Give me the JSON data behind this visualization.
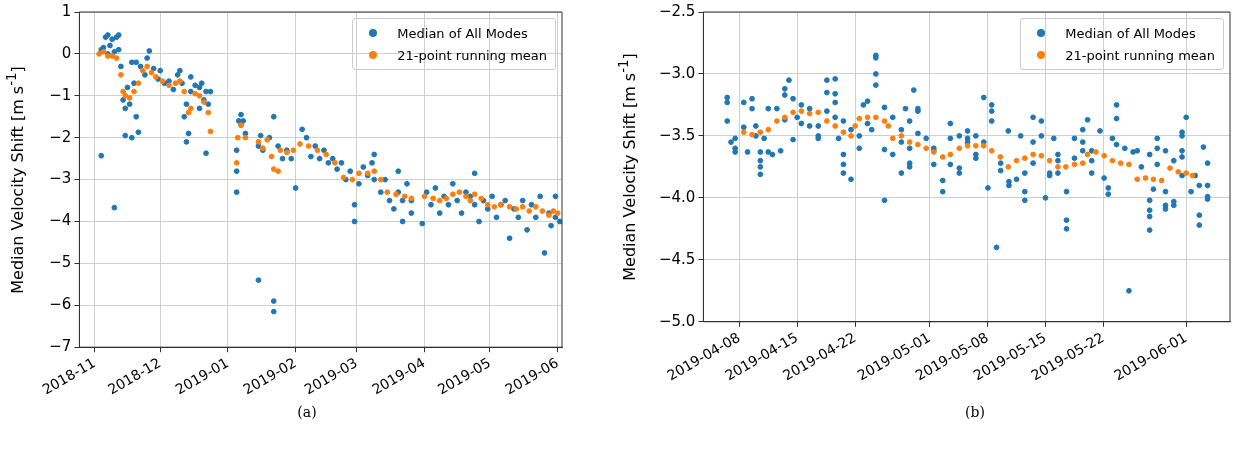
{
  "chart_data": [
    {
      "type": "scatter",
      "ylabel": "Median Velocity Shift [m s$^{-1}$]",
      "legend": "top right",
      "marker": "circle",
      "grid": true,
      "xlim": [
        "2018-10-25",
        "2019-06-03"
      ],
      "ylim": [
        -7,
        1
      ],
      "xticks": [
        "2018-11",
        "2018-12",
        "2019-01",
        "2019-02",
        "2019-03",
        "2019-04",
        "2019-05",
        "2019-06"
      ],
      "yticks": [
        {
          "value": -7,
          "label": "−7"
        },
        {
          "value": -6,
          "label": "−6"
        },
        {
          "value": -5,
          "label": "−5"
        },
        {
          "value": -4,
          "label": "−4"
        },
        {
          "value": -3,
          "label": "−3"
        },
        {
          "value": -2,
          "label": "−2"
        },
        {
          "value": -1,
          "label": "−1"
        },
        {
          "value": 0,
          "label": "0"
        },
        {
          "value": 1,
          "label": "1"
        }
      ],
      "annotations": [
        "(a)"
      ],
      "series": [
        {
          "name": "Median of All Modes",
          "color": "#1f77b4",
          "x": [
            "2018-11-04",
            "2018-11-04",
            "2018-11-05",
            "2018-11-06",
            "2018-11-07",
            "2018-11-07",
            "2018-11-08",
            "2018-11-09",
            "2018-11-10",
            "2018-11-10",
            "2018-11-11",
            "2018-11-12",
            "2018-11-12",
            "2018-11-13",
            "2018-11-14",
            "2018-11-15",
            "2018-11-15",
            "2018-11-16",
            "2018-11-17",
            "2018-11-18",
            "2018-11-18",
            "2018-11-19",
            "2018-11-20",
            "2018-11-20",
            "2018-11-21",
            "2018-11-22",
            "2018-11-24",
            "2018-11-25",
            "2018-11-26",
            "2018-11-28",
            "2018-11-30",
            "2018-12-01",
            "2018-12-03",
            "2018-12-05",
            "2018-12-07",
            "2018-12-09",
            "2018-12-10",
            "2018-12-11",
            "2018-12-12",
            "2018-12-13",
            "2018-12-13",
            "2018-12-14",
            "2018-12-15",
            "2018-12-15",
            "2018-12-17",
            "2018-12-19",
            "2018-12-19",
            "2018-12-20",
            "2018-12-21",
            "2018-12-22",
            "2018-12-22",
            "2018-12-23",
            "2018-12-24",
            "2019-01-05",
            "2019-01-05",
            "2019-01-05",
            "2019-01-06",
            "2019-01-07",
            "2019-01-07",
            "2019-01-08",
            "2019-01-09",
            "2019-01-15",
            "2019-01-15",
            "2019-01-16",
            "2019-01-17",
            "2019-01-20",
            "2019-01-22",
            "2019-01-22",
            "2019-01-22",
            "2019-01-24",
            "2019-01-26",
            "2019-01-28",
            "2019-01-30",
            "2019-02-01",
            "2019-02-04",
            "2019-02-06",
            "2019-02-08",
            "2019-02-10",
            "2019-02-12",
            "2019-02-14",
            "2019-02-16",
            "2019-02-18",
            "2019-02-20",
            "2019-02-22",
            "2019-02-24",
            "2019-02-26",
            "2019-02-28",
            "2019-02-28",
            "2019-03-02",
            "2019-03-04",
            "2019-03-06",
            "2019-03-08",
            "2019-03-09",
            "2019-03-09",
            "2019-03-12",
            "2019-03-14",
            "2019-03-16",
            "2019-03-18",
            "2019-03-20",
            "2019-03-20",
            "2019-03-22",
            "2019-03-22",
            "2019-03-24",
            "2019-03-26",
            "2019-03-26",
            "2019-03-31",
            "2019-04-02",
            "2019-04-04",
            "2019-04-06",
            "2019-04-08",
            "2019-04-10",
            "2019-04-12",
            "2019-04-14",
            "2019-04-16",
            "2019-04-18",
            "2019-04-20",
            "2019-04-22",
            "2019-04-24",
            "2019-04-24",
            "2019-04-26",
            "2019-04-28",
            "2019-04-30",
            "2019-05-02",
            "2019-05-04",
            "2019-05-06",
            "2019-05-08",
            "2019-05-10",
            "2019-05-12",
            "2019-05-14",
            "2019-05-16",
            "2019-05-18",
            "2019-05-20",
            "2019-05-22",
            "2019-05-24",
            "2019-05-26",
            "2019-05-28",
            "2019-05-29",
            "2019-05-31",
            "2019-05-31",
            "2019-06-02"
          ],
          "values": [
            0.1,
            -2.43,
            0.15,
            0.4,
            0.45,
            0.0,
            0.2,
            0.35,
            -3.67,
            0.05,
            0.4,
            0.45,
            0.1,
            -0.3,
            -1.1,
            -1.3,
            -1.95,
            -0.8,
            -1.2,
            -2.0,
            -0.2,
            -0.7,
            -1.5,
            -0.2,
            -1.87,
            -0.3,
            -0.5,
            -0.1,
            0.07,
            -0.35,
            -0.6,
            -0.4,
            -0.7,
            -0.65,
            -0.85,
            -0.5,
            -0.4,
            -0.7,
            -1.5,
            -2.1,
            -1.2,
            -1.9,
            -0.55,
            -0.9,
            -0.75,
            -0.8,
            -1.3,
            -0.7,
            -1.1,
            -2.37,
            -0.9,
            -1.2,
            -0.9,
            -3.3,
            -2.8,
            -2.3,
            -1.6,
            -1.45,
            -1.7,
            -1.6,
            -1.9,
            -2.2,
            -5.4,
            -1.95,
            -2.3,
            -2.0,
            -6.15,
            -5.9,
            -1.5,
            -2.2,
            -2.5,
            -2.3,
            -2.5,
            -3.2,
            -1.8,
            -2.0,
            -2.45,
            -2.2,
            -2.5,
            -2.3,
            -2.6,
            -2.5,
            -2.75,
            -2.6,
            -3.0,
            -2.8,
            -4.0,
            -3.6,
            -3.1,
            -2.7,
            -2.9,
            -2.6,
            -2.4,
            -3.0,
            -3.3,
            -3.0,
            -3.5,
            -3.7,
            -2.8,
            -3.3,
            -4.0,
            -3.5,
            -3.1,
            -3.8,
            -3.5,
            -4.05,
            -3.3,
            -3.6,
            -3.2,
            -3.8,
            -3.4,
            -3.6,
            -3.1,
            -3.5,
            -3.8,
            -3.3,
            -3.4,
            -2.85,
            -3.6,
            -4.0,
            -3.5,
            -3.7,
            -3.4,
            -3.9,
            -3.6,
            -3.5,
            -4.4,
            -3.7,
            -3.9,
            -3.5,
            -4.2,
            -3.6,
            -3.9,
            -3.4,
            -4.75,
            -3.8,
            -4.1,
            -3.4,
            -3.9,
            -4.0
          ]
        },
        {
          "name": "21-point running mean",
          "color": "#ff7f0e",
          "x": [
            "2018-11-03",
            "2018-11-05",
            "2018-11-07",
            "2018-11-09",
            "2018-11-11",
            "2018-11-13",
            "2018-11-14",
            "2018-11-15",
            "2018-11-17",
            "2018-11-19",
            "2018-11-21",
            "2018-11-23",
            "2018-11-25",
            "2018-11-27",
            "2018-11-29",
            "2018-12-02",
            "2018-12-05",
            "2018-12-08",
            "2018-12-10",
            "2018-12-12",
            "2018-12-14",
            "2018-12-15",
            "2018-12-17",
            "2018-12-19",
            "2018-12-21",
            "2018-12-23",
            "2018-12-24",
            "2019-01-05",
            "2019-01-05T12:00",
            "2019-01-07",
            "2019-01-09",
            "2019-01-15",
            "2019-01-17",
            "2019-01-19",
            "2019-01-21",
            "2019-01-22",
            "2019-01-24",
            "2019-01-25",
            "2019-01-28",
            "2019-01-31",
            "2019-02-03",
            "2019-02-07",
            "2019-02-11",
            "2019-02-15",
            "2019-02-19",
            "2019-02-23",
            "2019-02-27",
            "2019-03-02",
            "2019-03-06",
            "2019-03-09",
            "2019-03-12",
            "2019-03-15",
            "2019-03-19",
            "2019-03-23",
            "2019-03-26",
            "2019-04-01",
            "2019-04-05",
            "2019-04-08",
            "2019-04-11",
            "2019-04-14",
            "2019-04-17",
            "2019-04-20",
            "2019-04-22",
            "2019-04-24",
            "2019-04-27",
            "2019-04-30",
            "2019-05-03",
            "2019-05-06",
            "2019-05-10",
            "2019-05-13",
            "2019-05-16",
            "2019-05-19",
            "2019-05-22",
            "2019-05-25",
            "2019-05-28",
            "2019-05-30",
            "2019-06-01"
          ],
          "values": [
            0.0,
            0.05,
            -0.05,
            -0.05,
            -0.1,
            -0.5,
            -0.9,
            -1.0,
            -1.05,
            -0.9,
            -0.7,
            -0.4,
            -0.3,
            -0.45,
            -0.55,
            -0.65,
            -0.75,
            -0.7,
            -0.65,
            -0.9,
            -1.4,
            -1.3,
            -0.95,
            -1.0,
            -1.15,
            -1.4,
            -1.85,
            -2.6,
            -2.0,
            -1.7,
            -2.0,
            -2.1,
            -2.25,
            -2.05,
            -2.45,
            -2.75,
            -2.8,
            -2.3,
            -2.35,
            -2.3,
            -2.15,
            -2.2,
            -2.3,
            -2.4,
            -2.6,
            -2.95,
            -3.0,
            -2.85,
            -2.85,
            -2.8,
            -3.0,
            -3.3,
            -3.35,
            -3.4,
            -3.45,
            -3.4,
            -3.45,
            -3.5,
            -3.45,
            -3.35,
            -3.3,
            -3.4,
            -3.5,
            -3.35,
            -3.45,
            -3.6,
            -3.65,
            -3.6,
            -3.65,
            -3.7,
            -3.65,
            -3.75,
            -3.65,
            -3.75,
            -3.85,
            -3.75,
            -3.8
          ]
        }
      ]
    },
    {
      "type": "scatter",
      "ylabel": "Median Velocity Shift [m s$^{-1}$]",
      "legend": "top right",
      "marker": "circle",
      "grid": true,
      "xlim": [
        "2019-04-03T16:00",
        "2019-06-06T07:00"
      ],
      "ylim": [
        -5,
        -2.5
      ],
      "xticks": [
        "2019-04-08",
        "2019-04-15",
        "2019-04-22",
        "2019-05-01",
        "2019-05-08",
        "2019-05-15",
        "2019-05-22",
        "2019-06-01"
      ],
      "yticks": [
        {
          "value": -5,
          "label": "−5.0"
        },
        {
          "value": -4.5,
          "label": "−4.5"
        },
        {
          "value": -4,
          "label": "−4.0"
        },
        {
          "value": -3.5,
          "label": "−3.5"
        },
        {
          "value": -3,
          "label": "−3.0"
        },
        {
          "value": -2.5,
          "label": "−2.5"
        }
      ],
      "annotations": [
        "(b)"
      ],
      "series": [
        {
          "name": "Median of All Modes",
          "color": "#1f77b4",
          "x": [
            "2019-04-06T13:00",
            "2019-04-06T13:00",
            "2019-04-06T13:00",
            "2019-04-07",
            "2019-04-07T12:00",
            "2019-04-07T12:00",
            "2019-04-07T12:00",
            "2019-04-08T13:00",
            "2019-04-08T13:00",
            "2019-04-09",
            "2019-04-09T13:00",
            "2019-04-09T13:00",
            "2019-04-10",
            "2019-04-10",
            "2019-04-10T13:00",
            "2019-04-10T13:00",
            "2019-04-10T13:00",
            "2019-04-10T13:00",
            "2019-04-11",
            "2019-04-11T12:00",
            "2019-04-11T12:00",
            "2019-04-12",
            "2019-04-12T13:00",
            "2019-04-13",
            "2019-04-13T12:00",
            "2019-04-13T12:00",
            "2019-04-13T12:00",
            "2019-04-14",
            "2019-04-14T12:00",
            "2019-04-14T12:00",
            "2019-04-15",
            "2019-04-15T12:00",
            "2019-04-15T12:00",
            "2019-04-16T12:00",
            "2019-04-16T12:00",
            "2019-04-17T13:00",
            "2019-04-17T13:00",
            "2019-04-17T13:00",
            "2019-04-18T14:00",
            "2019-04-18T14:00",
            "2019-04-18T14:00",
            "2019-04-19T14:00",
            "2019-04-19T14:00",
            "2019-04-19T14:00",
            "2019-04-19T14:00",
            "2019-04-20",
            "2019-04-20T14:00",
            "2019-04-20T14:00",
            "2019-04-20T14:00",
            "2019-04-20T14:00",
            "2019-04-21T12:00",
            "2019-04-21T12:00",
            "2019-04-22T12:00",
            "2019-04-22T12:00",
            "2019-04-23",
            "2019-04-23T12:00",
            "2019-04-23T12:00",
            "2019-04-24",
            "2019-04-24T12:00",
            "2019-04-24T12:00",
            "2019-04-24T12:00",
            "2019-04-24T12:00",
            "2019-04-25T13:00",
            "2019-04-25T13:00",
            "2019-04-25T13:00",
            "2019-04-26T13:00",
            "2019-04-26T13:00",
            "2019-04-27T14:00",
            "2019-04-27T14:00",
            "2019-04-27T14:00",
            "2019-04-28T02:00",
            "2019-04-28T14:00",
            "2019-04-28T14:00",
            "2019-04-28T14:00",
            "2019-04-28T14:00",
            "2019-04-29T02:00",
            "2019-04-29T14:00",
            "2019-04-29T14:00",
            "2019-04-29T14:00",
            "2019-04-30T14:00",
            "2019-05-01T12:00",
            "2019-05-01T12:00",
            "2019-05-01T12:00",
            "2019-05-02T14:00",
            "2019-05-02T14:00",
            "2019-05-03T12:00",
            "2019-05-03T12:00",
            "2019-05-03T12:00",
            "2019-05-04T14:00",
            "2019-05-04T14:00",
            "2019-05-04T14:00",
            "2019-05-05T14:00",
            "2019-05-05T14:00",
            "2019-05-05T14:00",
            "2019-05-06T14:00",
            "2019-05-06T14:00",
            "2019-05-06T14:00",
            "2019-05-07T13:00",
            "2019-05-07T13:00",
            "2019-05-08T01:00",
            "2019-05-08T12:00",
            "2019-05-08T12:00",
            "2019-05-08T12:00",
            "2019-05-09T02:00",
            "2019-05-09T14:00",
            "2019-05-09T14:00",
            "2019-05-10T12:00",
            "2019-05-10T14:00",
            "2019-05-10T14:00",
            "2019-05-11T12:00",
            "2019-05-12",
            "2019-05-12T12:00",
            "2019-05-12T12:00",
            "2019-05-12T12:00",
            "2019-05-13T12:00",
            "2019-05-13T12:00",
            "2019-05-13T12:00",
            "2019-05-14T12:00",
            "2019-05-14T12:00",
            "2019-05-15",
            "2019-05-15T12:00",
            "2019-05-15T12:00",
            "2019-05-16",
            "2019-05-16T12:00",
            "2019-05-16T12:00",
            "2019-05-16T12:00",
            "2019-05-17T13:00",
            "2019-05-17T13:00",
            "2019-05-17T13:00",
            "2019-05-18T12:00",
            "2019-05-18T12:00",
            "2019-05-19T12:00",
            "2019-05-19T12:00",
            "2019-05-19T12:00",
            "2019-05-20T02:00",
            "2019-05-20T14:00",
            "2019-05-20T14:00",
            "2019-05-20T14:00",
            "2019-05-21T14:00",
            "2019-05-22T02:00",
            "2019-05-22T14:00",
            "2019-05-22T14:00",
            "2019-05-23T02:00",
            "2019-05-23T14:00",
            "2019-05-23T14:00",
            "2019-05-23T14:00",
            "2019-05-24T14:00",
            "2019-05-25T02:00",
            "2019-05-25T14:00",
            "2019-05-26T02:00",
            "2019-05-26T14:00",
            "2019-05-27T14:00",
            "2019-05-27T14:00",
            "2019-05-27T14:00",
            "2019-05-27T14:00",
            "2019-05-27T14:00",
            "2019-05-28T01:00",
            "2019-05-28T12:00",
            "2019-05-28T12:00",
            "2019-05-28T12:00",
            "2019-05-29T12:00",
            "2019-05-29T12:00",
            "2019-05-29T12:00",
            "2019-05-29T12:00",
            "2019-05-30T12:00",
            "2019-05-30T12:00",
            "2019-05-30T12:00",
            "2019-05-31T12:00",
            "2019-05-31T12:00",
            "2019-05-31T12:00",
            "2019-05-31T12:00",
            "2019-05-31T12:00",
            "2019-06-01",
            "2019-06-01T14:00",
            "2019-06-02T02:00",
            "2019-06-02T14:00",
            "2019-06-02T14:00",
            "2019-06-02T14:00",
            "2019-06-03T02:00",
            "2019-06-03T14:00",
            "2019-06-03T14:00",
            "2019-06-03T14:00",
            "2019-06-03T14:00"
          ],
          "values": [
            -3.19,
            -3.23,
            -3.38,
            -3.55,
            -3.6,
            -3.63,
            -3.52,
            -3.23,
            -3.43,
            -3.63,
            -3.2,
            -3.28,
            -3.42,
            -3.5,
            -3.7,
            -3.75,
            -3.81,
            -3.63,
            -3.52,
            -3.28,
            -3.63,
            -3.65,
            -3.28,
            -3.62,
            -3.12,
            -3.17,
            -3.37,
            -3.05,
            -3.2,
            -3.53,
            -3.35,
            -3.25,
            -3.4,
            -3.28,
            -3.42,
            -3.52,
            -3.42,
            -3.5,
            -3.05,
            -3.15,
            -3.3,
            -3.04,
            -3.16,
            -3.23,
            -3.35,
            -3.52,
            -3.38,
            -3.8,
            -3.65,
            -3.73,
            -3.85,
            -3.45,
            -3.5,
            -3.6,
            -3.25,
            -3.22,
            -3.4,
            -3.45,
            -2.85,
            -2.87,
            -3.0,
            -3.09,
            -3.27,
            -3.61,
            -4.02,
            -3.35,
            -3.65,
            -3.8,
            -3.45,
            -3.55,
            -3.28,
            -3.38,
            -3.6,
            -3.72,
            -3.75,
            -3.13,
            -3.28,
            -3.3,
            -3.48,
            -3.52,
            -3.6,
            -3.62,
            -3.73,
            -3.86,
            -3.95,
            -3.4,
            -3.52,
            -3.73,
            -3.5,
            -3.76,
            -3.8,
            -3.46,
            -3.52,
            -3.55,
            -3.5,
            -3.65,
            -3.68,
            -3.19,
            -3.55,
            -3.92,
            -3.25,
            -3.3,
            -3.38,
            -4.4,
            -3.72,
            -3.78,
            -3.46,
            -3.9,
            -3.87,
            -3.85,
            -3.5,
            -3.95,
            -4.02,
            -3.8,
            -3.55,
            -3.35,
            -3.72,
            -3.5,
            -3.38,
            -4.0,
            -3.8,
            -3.82,
            -3.52,
            -3.65,
            -3.7,
            -3.8,
            -3.95,
            -4.18,
            -4.25,
            -3.52,
            -3.68,
            -3.45,
            -3.55,
            -3.62,
            -3.37,
            -3.62,
            -3.8,
            -3.7,
            -3.46,
            -3.84,
            -3.92,
            -3.97,
            -3.52,
            -3.25,
            -3.36,
            -3.57,
            -3.6,
            -4.75,
            -3.63,
            -3.62,
            -3.75,
            -3.65,
            -4.02,
            -4.1,
            -4.15,
            -4.26,
            -3.93,
            -3.52,
            -3.6,
            -3.73,
            -3.62,
            -3.95,
            -4.06,
            -4.09,
            -3.7,
            -4.03,
            -4.06,
            -3.82,
            -3.47,
            -3.5,
            -3.62,
            -3.67,
            -3.35,
            -3.95,
            -3.82,
            -3.9,
            -4.14,
            -4.22,
            -3.59,
            -3.72,
            -3.9,
            -3.99,
            -4.01
          ]
        },
        {
          "name": "21-point running mean",
          "color": "#ff7f0e",
          "x": [
            "2019-04-08T13:00",
            "2019-04-09T13:00",
            "2019-04-10T13:00",
            "2019-04-11T12:00",
            "2019-04-12T13:00",
            "2019-04-13T12:00",
            "2019-04-14T12:00",
            "2019-04-15T12:00",
            "2019-04-16T12:00",
            "2019-04-17T13:00",
            "2019-04-18T14:00",
            "2019-04-19T14:00",
            "2019-04-20T14:00",
            "2019-04-21T12:00",
            "2019-04-22",
            "2019-04-22T12:00",
            "2019-04-23T12:00",
            "2019-04-24T12:00",
            "2019-04-25T13:00",
            "2019-04-26",
            "2019-04-26T13:00",
            "2019-04-27T14:00",
            "2019-04-28T14:00",
            "2019-04-29T14:00",
            "2019-04-30T14:00",
            "2019-05-01T12:00",
            "2019-05-02T14:00",
            "2019-05-03T12:00",
            "2019-05-04T14:00",
            "2019-05-05T14:00",
            "2019-05-06T14:00",
            "2019-05-07T13:00",
            "2019-05-08T12:00",
            "2019-05-09T13:00",
            "2019-05-10T12:00",
            "2019-05-11T12:00",
            "2019-05-12T12:00",
            "2019-05-13T12:00",
            "2019-05-14T12:00",
            "2019-05-15T12:00",
            "2019-05-16T12:00",
            "2019-05-17T11:00",
            "2019-05-18T12:00",
            "2019-05-19T12:00",
            "2019-05-20T02:00",
            "2019-05-21T02:00",
            "2019-05-22T02:00",
            "2019-05-23T02:00",
            "2019-05-24T02:00",
            "2019-05-25T02:00",
            "2019-05-26T02:00",
            "2019-05-27T02:00",
            "2019-05-28T01:00",
            "2019-05-29T01:00",
            "2019-05-30T01:00",
            "2019-05-31T01:00",
            "2019-06-01",
            "2019-06-01T18:00"
          ],
          "values": [
            -3.47,
            -3.49,
            -3.47,
            -3.45,
            -3.38,
            -3.35,
            -3.31,
            -3.3,
            -3.32,
            -3.31,
            -3.38,
            -3.42,
            -3.47,
            -3.5,
            -3.42,
            -3.36,
            -3.35,
            -3.35,
            -3.38,
            -3.42,
            -3.52,
            -3.5,
            -3.55,
            -3.57,
            -3.6,
            -3.63,
            -3.67,
            -3.65,
            -3.6,
            -3.58,
            -3.58,
            -3.58,
            -3.62,
            -3.67,
            -3.75,
            -3.7,
            -3.68,
            -3.65,
            -3.66,
            -3.7,
            -3.75,
            -3.75,
            -3.73,
            -3.72,
            -3.65,
            -3.63,
            -3.66,
            -3.7,
            -3.72,
            -3.73,
            -3.85,
            -3.84,
            -3.85,
            -3.86,
            -3.76,
            -3.79,
            -3.8,
            -3.82
          ]
        }
      ]
    }
  ]
}
